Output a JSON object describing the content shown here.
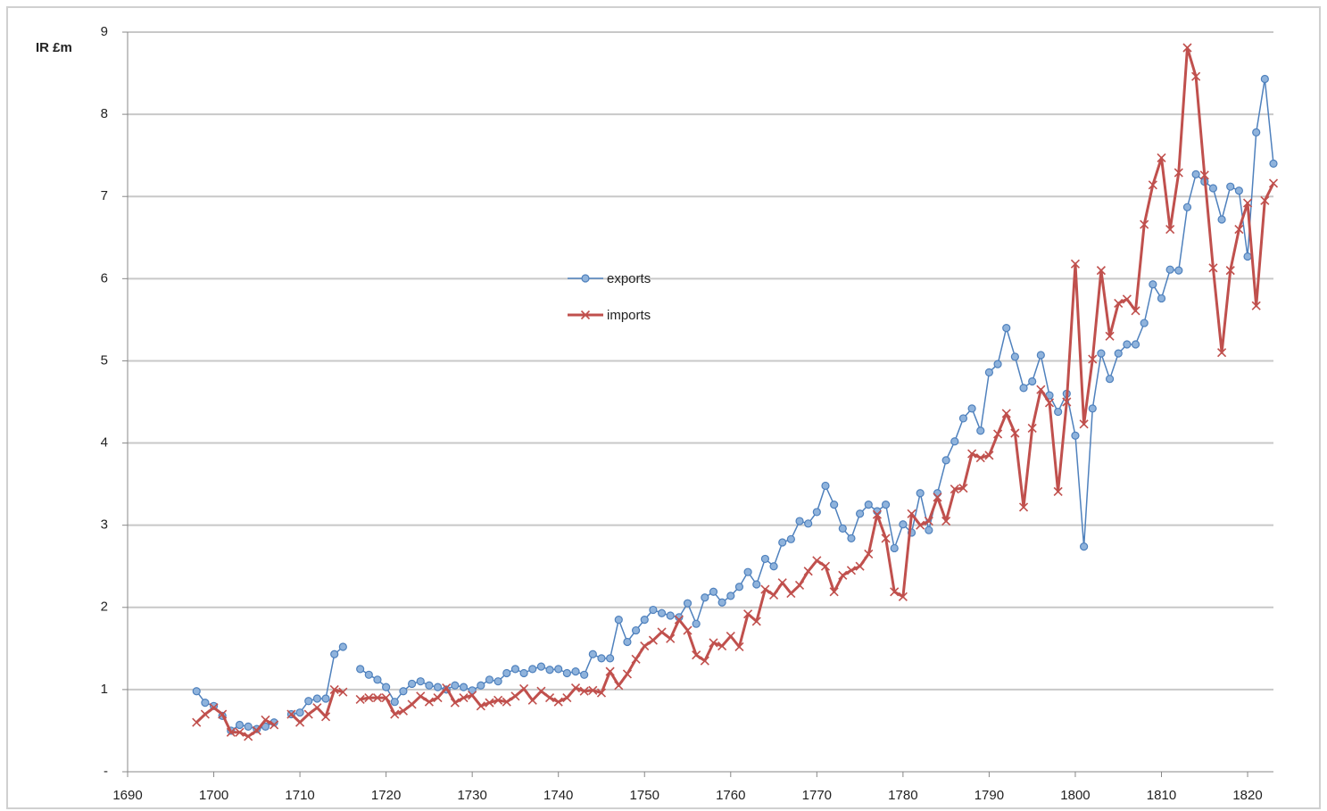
{
  "chart_data": {
    "type": "line",
    "ylabel": "IR £m",
    "x": [
      1698,
      1699,
      1700,
      1701,
      1702,
      1703,
      1704,
      1705,
      1706,
      1707,
      1708,
      1709,
      1710,
      1711,
      1712,
      1713,
      1714,
      1715,
      1716,
      1717,
      1718,
      1719,
      1720,
      1721,
      1722,
      1723,
      1724,
      1725,
      1726,
      1727,
      1728,
      1729,
      1730,
      1731,
      1732,
      1733,
      1734,
      1735,
      1736,
      1737,
      1738,
      1739,
      1740,
      1741,
      1742,
      1743,
      1744,
      1745,
      1746,
      1747,
      1748,
      1749,
      1750,
      1751,
      1752,
      1753,
      1754,
      1755,
      1756,
      1757,
      1758,
      1759,
      1760,
      1761,
      1762,
      1763,
      1764,
      1765,
      1766,
      1767,
      1768,
      1769,
      1770,
      1771,
      1772,
      1773,
      1774,
      1775,
      1776,
      1777,
      1778,
      1779,
      1780,
      1781,
      1782,
      1783,
      1784,
      1785,
      1786,
      1787,
      1788,
      1789,
      1790,
      1791,
      1792,
      1793,
      1794,
      1795,
      1796,
      1797,
      1798,
      1799,
      1800,
      1801,
      1802,
      1803,
      1804,
      1805,
      1806,
      1807,
      1808,
      1809,
      1810,
      1811,
      1812,
      1813,
      1814,
      1815,
      1816,
      1817,
      1818,
      1819,
      1820,
      1821,
      1822,
      1823
    ],
    "series": [
      {
        "name": "exports",
        "color": "#4f81bd",
        "marker": "circle",
        "values": [
          0.98,
          0.84,
          0.8,
          0.68,
          0.5,
          0.57,
          0.55,
          0.52,
          0.55,
          0.6,
          null,
          0.7,
          0.72,
          0.86,
          0.89,
          0.89,
          1.43,
          1.52,
          null,
          1.25,
          1.18,
          1.12,
          1.03,
          0.85,
          0.98,
          1.07,
          1.1,
          1.05,
          1.03,
          1.0,
          1.05,
          1.03,
          0.99,
          1.05,
          1.12,
          1.1,
          1.2,
          1.25,
          1.2,
          1.25,
          1.28,
          1.24,
          1.25,
          1.2,
          1.22,
          1.18,
          1.43,
          1.38,
          1.38,
          1.85,
          1.58,
          1.72,
          1.85,
          1.97,
          1.93,
          1.9,
          1.88,
          2.05,
          1.8,
          2.12,
          2.19,
          2.06,
          2.14,
          2.25,
          2.43,
          2.28,
          2.59,
          2.5,
          2.79,
          2.83,
          3.05,
          3.02,
          3.16,
          3.48,
          3.25,
          2.96,
          2.84,
          3.14,
          3.25,
          3.17,
          3.25,
          2.72,
          3.01,
          2.91,
          3.39,
          2.94,
          3.39,
          3.79,
          4.02,
          4.3,
          4.42,
          4.15,
          4.86,
          4.96,
          5.4,
          5.05,
          4.67,
          4.75,
          5.07,
          4.58,
          4.38,
          4.6,
          4.09,
          2.74,
          4.42,
          5.09,
          4.78,
          5.09,
          5.2,
          5.2,
          5.46,
          5.93,
          5.76,
          6.11,
          6.1,
          6.87,
          7.27,
          7.18,
          7.1,
          6.72,
          7.12,
          7.07,
          6.27,
          7.78,
          8.43,
          7.4
        ]
      },
      {
        "name": "imports",
        "color": "#c0504d",
        "marker": "x",
        "values": [
          0.6,
          0.7,
          0.78,
          0.7,
          0.48,
          0.48,
          0.43,
          0.5,
          0.63,
          0.57,
          null,
          0.7,
          0.6,
          0.7,
          0.78,
          0.67,
          1.0,
          0.97,
          null,
          0.88,
          0.9,
          0.9,
          0.9,
          0.7,
          0.74,
          0.82,
          0.92,
          0.85,
          0.9,
          1.02,
          0.84,
          0.9,
          0.93,
          0.8,
          0.84,
          0.87,
          0.85,
          0.92,
          1.01,
          0.87,
          0.98,
          0.9,
          0.85,
          0.9,
          1.02,
          0.98,
          0.99,
          0.96,
          1.22,
          1.05,
          1.19,
          1.37,
          1.53,
          1.6,
          1.7,
          1.62,
          1.85,
          1.72,
          1.42,
          1.35,
          1.57,
          1.53,
          1.65,
          1.52,
          1.92,
          1.83,
          2.22,
          2.15,
          2.3,
          2.17,
          2.27,
          2.44,
          2.57,
          2.5,
          2.19,
          2.39,
          2.45,
          2.5,
          2.65,
          3.13,
          2.84,
          2.19,
          2.13,
          3.14,
          3.0,
          3.05,
          3.34,
          3.05,
          3.44,
          3.45,
          3.87,
          3.82,
          3.85,
          4.11,
          4.36,
          4.12,
          3.22,
          4.18,
          4.65,
          4.49,
          3.41,
          4.5,
          6.18,
          4.23,
          5.02,
          6.1,
          5.3,
          5.7,
          5.75,
          5.61,
          6.66,
          7.14,
          7.47,
          6.6,
          7.29,
          8.81,
          8.46,
          7.26,
          6.13,
          5.1,
          6.1,
          6.6,
          6.92,
          5.67,
          6.95,
          7.16
        ]
      }
    ],
    "xlim": [
      1690,
      1823
    ],
    "xticks": [
      1690,
      1700,
      1710,
      1720,
      1730,
      1740,
      1750,
      1760,
      1770,
      1780,
      1790,
      1800,
      1810,
      1820
    ],
    "ylim": [
      0,
      9
    ],
    "yticks": [
      {
        "value": 0,
        "label": "-"
      },
      1,
      2,
      3,
      4,
      5,
      6,
      7,
      8,
      9
    ],
    "grid": true,
    "legend": "center"
  }
}
